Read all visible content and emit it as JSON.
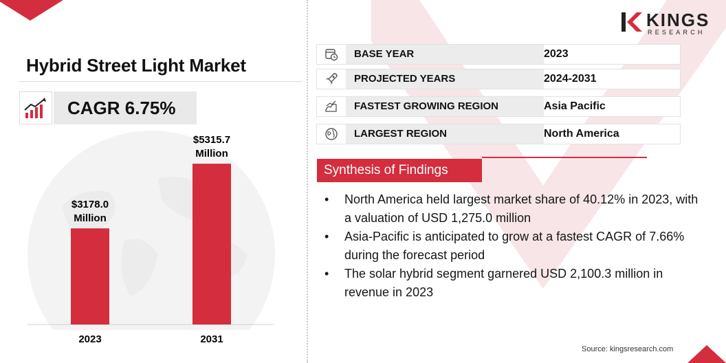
{
  "brand": {
    "name": "KINGS",
    "subtitle": "RESEARCH",
    "accent": "#d42d3e"
  },
  "header": {
    "title": "Hybrid Street Light Market",
    "cagr": "CAGR 6.75%"
  },
  "chart_data": {
    "type": "bar",
    "categories": [
      "2023",
      "2031"
    ],
    "values": [
      3178.0,
      5315.7
    ],
    "data_labels": [
      {
        "value": "$3178.0",
        "unit": "Million"
      },
      {
        "value": "$5315.7",
        "unit": "Million"
      }
    ],
    "title": "",
    "xlabel": "",
    "ylabel": "",
    "ylim": [
      0,
      6000
    ],
    "grid": false,
    "bar_color": "#d42d3e"
  },
  "info": [
    {
      "icon": "calendar-clock-icon",
      "key": "BASE YEAR",
      "value": "2023"
    },
    {
      "icon": "rocket-icon",
      "key": "PROJECTED YEARS",
      "value": "2024-2031"
    },
    {
      "icon": "growth-map-icon",
      "key": "FASTEST GROWING REGION",
      "value": "Asia Pacific"
    },
    {
      "icon": "globe-icon",
      "key": "LARGEST REGION",
      "value": "North America"
    }
  ],
  "synthesis": {
    "heading": "Synthesis of Findings",
    "points": [
      "North America held largest market share of 40.12% in 2023, with a valuation of USD 1,275.0 million",
      "Asia-Pacific is anticipated to grow at a fastest CAGR of 7.66% during the forecast period",
      "The solar hybrid segment garnered USD 2,100.3 million in revenue in 2023"
    ]
  },
  "source": "Source: kingsresearch.com"
}
